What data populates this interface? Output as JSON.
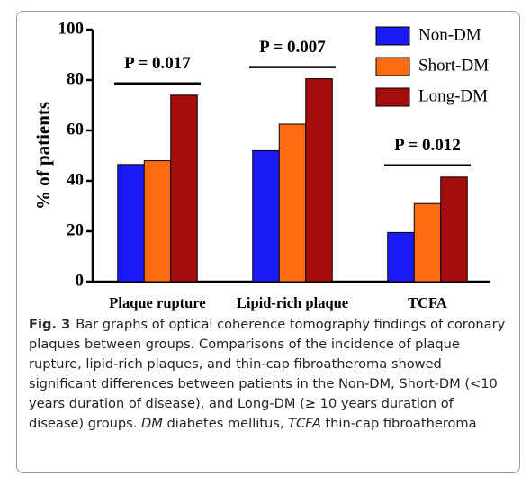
{
  "chart_data": {
    "type": "bar",
    "ylabel": "% of patients",
    "categories": [
      "Plaque rupture",
      "Lipid-rich plaque",
      "TCFA"
    ],
    "series": [
      {
        "name": "Non-DM",
        "color": "#1a1af5",
        "values": [
          46.5,
          52,
          19.5
        ]
      },
      {
        "name": "Short-DM",
        "color": "#ff6b12",
        "values": [
          48,
          62.5,
          31
        ]
      },
      {
        "name": "Long-DM",
        "color": "#a50c0c",
        "values": [
          74,
          80.5,
          41.5
        ]
      }
    ],
    "ylim": [
      0,
      100
    ],
    "yticks": [
      0,
      20,
      40,
      60,
      80,
      100
    ],
    "legend": "top-right",
    "annotations": [
      "P = 0.017",
      "P = 0.007",
      "P = 0.012"
    ]
  },
  "caption": {
    "label": "Fig. 3",
    "parts": [
      "Bar graphs of optical coherence tomography findings of coronary plaques between groups. Comparisons of the incidence of plaque rupture, lipid-rich plaques, and thin-cap fibroatheroma showed significant differences between patients in the Non-DM, Short-DM (<10 years duration of disease), and Long-DM (≥ 10 years duration of disease) groups. ",
      "DM",
      " diabetes mellitus, ",
      "TCFA",
      " thin-cap fibroatheroma"
    ]
  }
}
